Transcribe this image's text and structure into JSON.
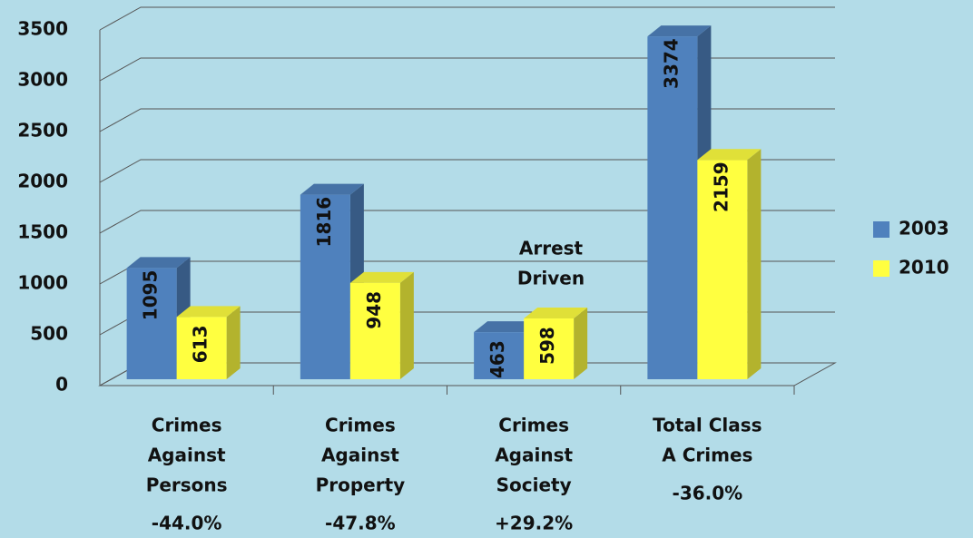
{
  "chart_data": {
    "type": "bar3d",
    "categories": [
      [
        "Crimes",
        "Against",
        "Persons"
      ],
      [
        "Crimes",
        "Against",
        "Property"
      ],
      [
        "Crimes",
        "Against",
        "Society"
      ],
      [
        "Total Class",
        "A Crimes"
      ]
    ],
    "changes": [
      "-44.0%",
      "-47.8%",
      "+29.2%",
      "-36.0%"
    ],
    "series": [
      {
        "name": "2003",
        "color": "#4f81bd",
        "values": [
          1095,
          1816,
          463,
          3374
        ]
      },
      {
        "name": "2010",
        "color": "#ffff40",
        "values": [
          613,
          948,
          598,
          2159
        ]
      }
    ],
    "annotation": [
      "Arrest",
      "Driven"
    ],
    "ylim": [
      0,
      3500
    ],
    "yticks": [
      0,
      500,
      1000,
      1500,
      2000,
      2500,
      3000,
      3500
    ],
    "grid": true,
    "legend": "right"
  }
}
